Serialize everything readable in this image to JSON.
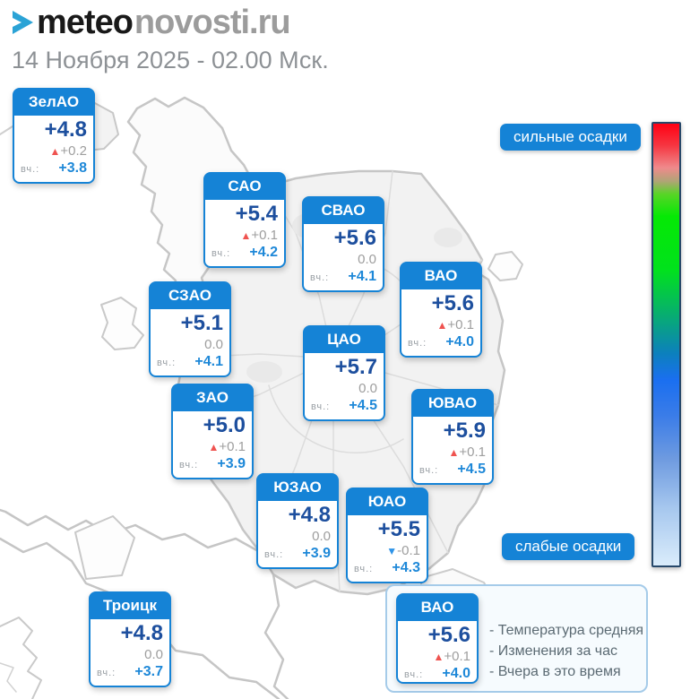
{
  "header": {
    "logo": {
      "icon": "chevron-right",
      "primary": "meteo",
      "secondary": "novosti.ru"
    },
    "date_line": "14 Ноября 2025 - 02.00 Мск."
  },
  "scale": {
    "top_label": "сильные осадки",
    "bottom_label": "слабые осадки",
    "gradient_top_to_bottom": [
      "#ff0013",
      "#ef8a8c",
      "#05e905",
      "#07af6e",
      "#1a6ff0",
      "#daecfb"
    ]
  },
  "card_labels": {
    "yesterday_prefix": "вч.:"
  },
  "districts": [
    {
      "name": "ЗелАО",
      "temp": "+4.8",
      "trend": "up",
      "change": "+0.2",
      "yesterday": "+3.8"
    },
    {
      "name": "САО",
      "temp": "+5.4",
      "trend": "up",
      "change": "+0.1",
      "yesterday": "+4.2"
    },
    {
      "name": "СВАО",
      "temp": "+5.6",
      "trend": "none",
      "change": "0.0",
      "yesterday": "+4.1"
    },
    {
      "name": "СЗАО",
      "temp": "+5.1",
      "trend": "none",
      "change": "0.0",
      "yesterday": "+4.1"
    },
    {
      "name": "ВАО",
      "temp": "+5.6",
      "trend": "up",
      "change": "+0.1",
      "yesterday": "+4.0"
    },
    {
      "name": "ЦАО",
      "temp": "+5.7",
      "trend": "none",
      "change": "0.0",
      "yesterday": "+4.5"
    },
    {
      "name": "ЗАО",
      "temp": "+5.0",
      "trend": "up",
      "change": "+0.1",
      "yesterday": "+3.9"
    },
    {
      "name": "ЮВАО",
      "temp": "+5.9",
      "trend": "up",
      "change": "+0.1",
      "yesterday": "+4.5"
    },
    {
      "name": "ЮЗАО",
      "temp": "+4.8",
      "trend": "none",
      "change": "0.0",
      "yesterday": "+3.9"
    },
    {
      "name": "ЮАО",
      "temp": "+5.5",
      "trend": "down",
      "change": "-0.1",
      "yesterday": "+4.3"
    },
    {
      "name": "Троицк",
      "temp": "+4.8",
      "trend": "none",
      "change": "0.0",
      "yesterday": "+3.7"
    }
  ],
  "legend": {
    "sample": {
      "name": "ВАО",
      "temp": "+5.6",
      "trend": "up",
      "change": "+0.1",
      "yesterday": "+4.0"
    },
    "lines": [
      "- Температура средняя",
      "- Изменения за час",
      "- Вчера в это время"
    ]
  },
  "colors": {
    "accent_blue": "#1583d6",
    "temperature_navy": "#1d4f9e",
    "trend_up_red": "#ef5350",
    "trend_down_blue": "#2e93e8",
    "yesterday_blue": "#1e88d8",
    "muted_gray": "#9e9e9e"
  }
}
